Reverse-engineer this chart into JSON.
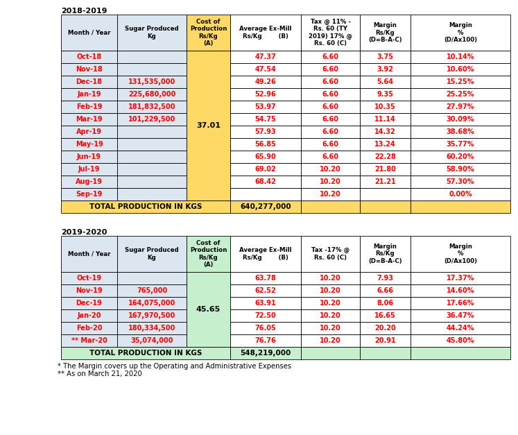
{
  "title1": "2018-2019",
  "title2": "2019-2020",
  "table1_headers": [
    "Month / Year",
    "Sugar Produced\nKg",
    "Cost of\nProduction\nRs/Kg\n(A)",
    "Average Ex-Mill\nRs/Kg        (B)",
    "Tax @ 11% -\nRs. 60 (TY\n2019) 17% @\nRs. 60 (C)",
    "Margin\nRs/Kg\n(D=B-A-C)",
    "Margin\n%\n(D/Ax100)"
  ],
  "table1_rows": [
    [
      "Oct-18",
      "",
      "47.37",
      "6.60",
      "3.75",
      "10.14%"
    ],
    [
      "Nov-18",
      "",
      "47.54",
      "6.60",
      "3.92",
      "10.60%"
    ],
    [
      "Dec-18",
      "131,535,000",
      "49.26",
      "6.60",
      "5.64",
      "15.25%"
    ],
    [
      "Jan-19",
      "225,680,000",
      "52.96",
      "6.60",
      "9.35",
      "25.25%"
    ],
    [
      "Feb-19",
      "181,832,500",
      "53.97",
      "6.60",
      "10.35",
      "27.97%"
    ],
    [
      "Mar-19",
      "101,229,500",
      "54.75",
      "6.60",
      "11.14",
      "30.09%"
    ],
    [
      "Apr-19",
      "",
      "57.93",
      "6.60",
      "14.32",
      "38.68%"
    ],
    [
      "May-19",
      "",
      "56.85",
      "6.60",
      "13.24",
      "35.77%"
    ],
    [
      "Jun-19",
      "",
      "65.90",
      "6.60",
      "22.28",
      "60.20%"
    ],
    [
      "Jul-19",
      "",
      "69.02",
      "10.20",
      "21.80",
      "58.90%"
    ],
    [
      "Aug-19",
      "",
      "68.42",
      "10.20",
      "21.21",
      "57.30%"
    ],
    [
      "Sep-19",
      "",
      "",
      "10.20",
      "",
      "0.00%"
    ]
  ],
  "table1_total": "640,277,000",
  "table1_cost": "37.01",
  "table2_headers": [
    "Month / Year",
    "Sugar Produced\nKg",
    "Cost of\nProduction\nRs/Kg\n(A)",
    "Average Ex-Mill\nRs/Kg        (B)",
    "Tax -17% @\nRs. 60 (C)",
    "Margin\nRs/Kg\n(D=B-A-C)",
    "Margin\n%\n(D/Ax100)"
  ],
  "table2_rows": [
    [
      "Oct-19",
      "",
      "63.78",
      "10.20",
      "7.93",
      "17.37%"
    ],
    [
      "Nov-19",
      "765,000",
      "62.52",
      "10.20",
      "6.66",
      "14.60%"
    ],
    [
      "Dec-19",
      "164,075,000",
      "63.91",
      "10.20",
      "8.06",
      "17.66%"
    ],
    [
      "Jan-20",
      "167,970,500",
      "72.50",
      "10.20",
      "16.65",
      "36.47%"
    ],
    [
      "Feb-20",
      "180,334,500",
      "76.05",
      "10.20",
      "20.20",
      "44.24%"
    ],
    [
      "** Mar-20",
      "35,074,000",
      "76.76",
      "10.20",
      "20.91",
      "45.80%"
    ]
  ],
  "table2_total": "548,219,000",
  "table2_cost": "45.65",
  "footnote1": "* The Margin covers up the Operating and Administrative Expenses",
  "footnote2": "** As on March 21, 2020",
  "col1_bg": "#dce6f1",
  "col2_bg": "#dce6f1",
  "col3_bg_t1": "#ffd966",
  "col3_bg_t2": "#c6efce",
  "col_white_bg": "#ffffff",
  "row_label_color": "#ff0000",
  "total_row_bg_t1": "#ffd966",
  "total_row_bg_t2": "#c6efce"
}
